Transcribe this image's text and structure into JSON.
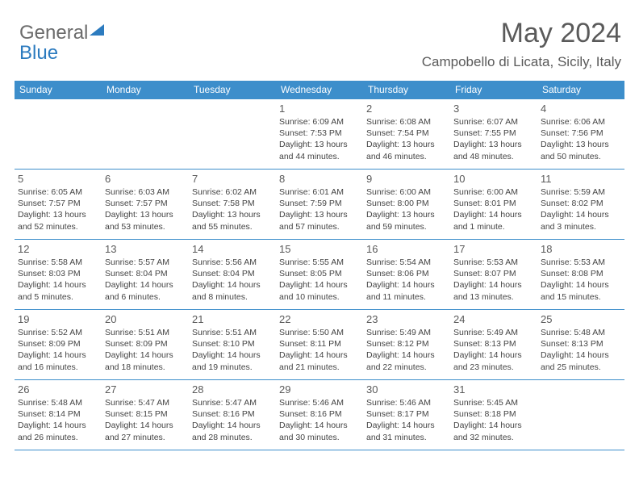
{
  "logo": {
    "part1": "General",
    "part2": "Blue"
  },
  "header": {
    "month_title": "May 2024",
    "location": "Campobello di Licata, Sicily, Italy"
  },
  "day_names": [
    "Sunday",
    "Monday",
    "Tuesday",
    "Wednesday",
    "Thursday",
    "Friday",
    "Saturday"
  ],
  "colors": {
    "header_bar": "#3d8ecb",
    "logo_blue": "#2c7bbf",
    "text_gray": "#5a5a5a",
    "body_text": "#444444"
  },
  "weeks": [
    [
      {
        "num": "",
        "sunrise": "",
        "sunset": "",
        "daylight": ""
      },
      {
        "num": "",
        "sunrise": "",
        "sunset": "",
        "daylight": ""
      },
      {
        "num": "",
        "sunrise": "",
        "sunset": "",
        "daylight": ""
      },
      {
        "num": "1",
        "sunrise": "Sunrise: 6:09 AM",
        "sunset": "Sunset: 7:53 PM",
        "daylight": "Daylight: 13 hours and 44 minutes."
      },
      {
        "num": "2",
        "sunrise": "Sunrise: 6:08 AM",
        "sunset": "Sunset: 7:54 PM",
        "daylight": "Daylight: 13 hours and 46 minutes."
      },
      {
        "num": "3",
        "sunrise": "Sunrise: 6:07 AM",
        "sunset": "Sunset: 7:55 PM",
        "daylight": "Daylight: 13 hours and 48 minutes."
      },
      {
        "num": "4",
        "sunrise": "Sunrise: 6:06 AM",
        "sunset": "Sunset: 7:56 PM",
        "daylight": "Daylight: 13 hours and 50 minutes."
      }
    ],
    [
      {
        "num": "5",
        "sunrise": "Sunrise: 6:05 AM",
        "sunset": "Sunset: 7:57 PM",
        "daylight": "Daylight: 13 hours and 52 minutes."
      },
      {
        "num": "6",
        "sunrise": "Sunrise: 6:03 AM",
        "sunset": "Sunset: 7:57 PM",
        "daylight": "Daylight: 13 hours and 53 minutes."
      },
      {
        "num": "7",
        "sunrise": "Sunrise: 6:02 AM",
        "sunset": "Sunset: 7:58 PM",
        "daylight": "Daylight: 13 hours and 55 minutes."
      },
      {
        "num": "8",
        "sunrise": "Sunrise: 6:01 AM",
        "sunset": "Sunset: 7:59 PM",
        "daylight": "Daylight: 13 hours and 57 minutes."
      },
      {
        "num": "9",
        "sunrise": "Sunrise: 6:00 AM",
        "sunset": "Sunset: 8:00 PM",
        "daylight": "Daylight: 13 hours and 59 minutes."
      },
      {
        "num": "10",
        "sunrise": "Sunrise: 6:00 AM",
        "sunset": "Sunset: 8:01 PM",
        "daylight": "Daylight: 14 hours and 1 minute."
      },
      {
        "num": "11",
        "sunrise": "Sunrise: 5:59 AM",
        "sunset": "Sunset: 8:02 PM",
        "daylight": "Daylight: 14 hours and 3 minutes."
      }
    ],
    [
      {
        "num": "12",
        "sunrise": "Sunrise: 5:58 AM",
        "sunset": "Sunset: 8:03 PM",
        "daylight": "Daylight: 14 hours and 5 minutes."
      },
      {
        "num": "13",
        "sunrise": "Sunrise: 5:57 AM",
        "sunset": "Sunset: 8:04 PM",
        "daylight": "Daylight: 14 hours and 6 minutes."
      },
      {
        "num": "14",
        "sunrise": "Sunrise: 5:56 AM",
        "sunset": "Sunset: 8:04 PM",
        "daylight": "Daylight: 14 hours and 8 minutes."
      },
      {
        "num": "15",
        "sunrise": "Sunrise: 5:55 AM",
        "sunset": "Sunset: 8:05 PM",
        "daylight": "Daylight: 14 hours and 10 minutes."
      },
      {
        "num": "16",
        "sunrise": "Sunrise: 5:54 AM",
        "sunset": "Sunset: 8:06 PM",
        "daylight": "Daylight: 14 hours and 11 minutes."
      },
      {
        "num": "17",
        "sunrise": "Sunrise: 5:53 AM",
        "sunset": "Sunset: 8:07 PM",
        "daylight": "Daylight: 14 hours and 13 minutes."
      },
      {
        "num": "18",
        "sunrise": "Sunrise: 5:53 AM",
        "sunset": "Sunset: 8:08 PM",
        "daylight": "Daylight: 14 hours and 15 minutes."
      }
    ],
    [
      {
        "num": "19",
        "sunrise": "Sunrise: 5:52 AM",
        "sunset": "Sunset: 8:09 PM",
        "daylight": "Daylight: 14 hours and 16 minutes."
      },
      {
        "num": "20",
        "sunrise": "Sunrise: 5:51 AM",
        "sunset": "Sunset: 8:09 PM",
        "daylight": "Daylight: 14 hours and 18 minutes."
      },
      {
        "num": "21",
        "sunrise": "Sunrise: 5:51 AM",
        "sunset": "Sunset: 8:10 PM",
        "daylight": "Daylight: 14 hours and 19 minutes."
      },
      {
        "num": "22",
        "sunrise": "Sunrise: 5:50 AM",
        "sunset": "Sunset: 8:11 PM",
        "daylight": "Daylight: 14 hours and 21 minutes."
      },
      {
        "num": "23",
        "sunrise": "Sunrise: 5:49 AM",
        "sunset": "Sunset: 8:12 PM",
        "daylight": "Daylight: 14 hours and 22 minutes."
      },
      {
        "num": "24",
        "sunrise": "Sunrise: 5:49 AM",
        "sunset": "Sunset: 8:13 PM",
        "daylight": "Daylight: 14 hours and 23 minutes."
      },
      {
        "num": "25",
        "sunrise": "Sunrise: 5:48 AM",
        "sunset": "Sunset: 8:13 PM",
        "daylight": "Daylight: 14 hours and 25 minutes."
      }
    ],
    [
      {
        "num": "26",
        "sunrise": "Sunrise: 5:48 AM",
        "sunset": "Sunset: 8:14 PM",
        "daylight": "Daylight: 14 hours and 26 minutes."
      },
      {
        "num": "27",
        "sunrise": "Sunrise: 5:47 AM",
        "sunset": "Sunset: 8:15 PM",
        "daylight": "Daylight: 14 hours and 27 minutes."
      },
      {
        "num": "28",
        "sunrise": "Sunrise: 5:47 AM",
        "sunset": "Sunset: 8:16 PM",
        "daylight": "Daylight: 14 hours and 28 minutes."
      },
      {
        "num": "29",
        "sunrise": "Sunrise: 5:46 AM",
        "sunset": "Sunset: 8:16 PM",
        "daylight": "Daylight: 14 hours and 30 minutes."
      },
      {
        "num": "30",
        "sunrise": "Sunrise: 5:46 AM",
        "sunset": "Sunset: 8:17 PM",
        "daylight": "Daylight: 14 hours and 31 minutes."
      },
      {
        "num": "31",
        "sunrise": "Sunrise: 5:45 AM",
        "sunset": "Sunset: 8:18 PM",
        "daylight": "Daylight: 14 hours and 32 minutes."
      },
      {
        "num": "",
        "sunrise": "",
        "sunset": "",
        "daylight": ""
      }
    ]
  ]
}
